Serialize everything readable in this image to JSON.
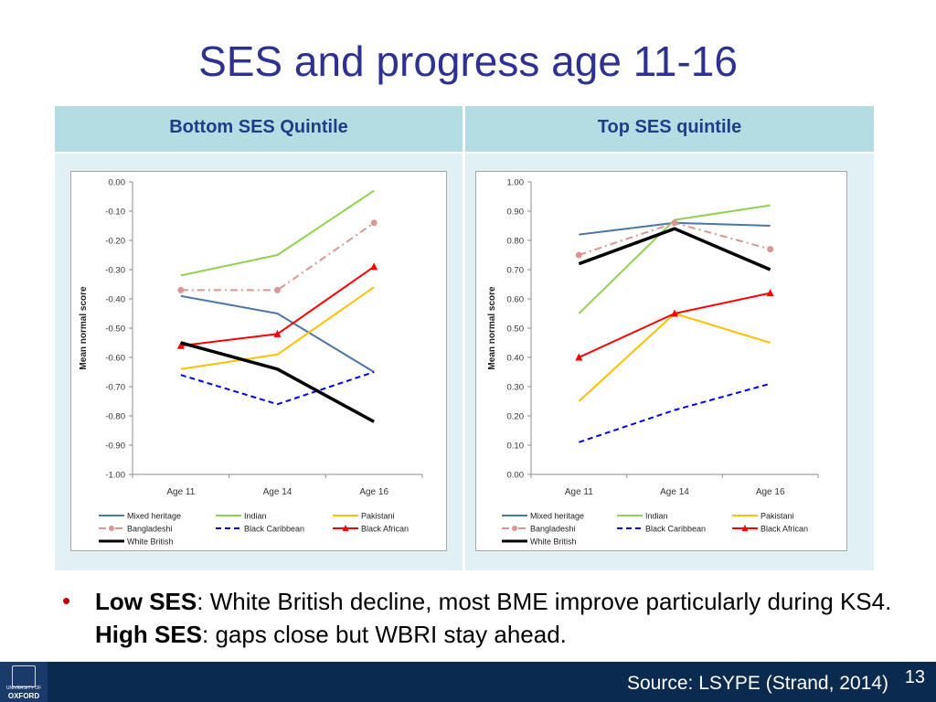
{
  "slide": {
    "title": "SES and progress age 11-16",
    "page_number": "13",
    "source": "Source:  LSYPE (Strand, 2014)",
    "logo_line1": "UNIVERSITY OF",
    "logo_line2": "OXFORD"
  },
  "table": {
    "header_left": "Bottom SES Quintile",
    "header_right": "Top SES quintile"
  },
  "bullet": {
    "b1": "Low SES",
    "t1": ": White British decline, most BME improve particularly during KS4. ",
    "b2": "High SES",
    "t2": ": gaps close but WBRI stay ahead."
  },
  "chart_data": [
    {
      "type": "line",
      "ylabel": "Mean normal score",
      "categories": [
        "Age 11",
        "Age 14",
        "Age 16"
      ],
      "ylim": [
        -1.0,
        0.0
      ],
      "yticks": [
        "0.00",
        "-0.10",
        "-0.20",
        "-0.30",
        "-0.40",
        "-0.50",
        "-0.60",
        "-0.70",
        "-0.80",
        "-0.90",
        "-1.00"
      ],
      "grid": false,
      "legend": "bottom",
      "series": [
        {
          "name": "Mixed heritage",
          "values": [
            -0.39,
            -0.45,
            -0.65
          ],
          "color": "#4a76a8",
          "dash": "",
          "marker": ""
        },
        {
          "name": "Indian",
          "values": [
            -0.32,
            -0.25,
            -0.03
          ],
          "color": "#92d050",
          "dash": "",
          "marker": ""
        },
        {
          "name": "Pakistani",
          "values": [
            -0.64,
            -0.59,
            -0.36
          ],
          "color": "#ffc000",
          "dash": "",
          "marker": ""
        },
        {
          "name": "Bangladeshi",
          "values": [
            -0.37,
            -0.37,
            -0.14
          ],
          "color": "#d99694",
          "dash": "8,4,2,4",
          "marker": "circle"
        },
        {
          "name": "Black Caribbean",
          "values": [
            -0.66,
            -0.76,
            -0.65
          ],
          "color": "#0000ff",
          "dash": "6,4",
          "marker": ""
        },
        {
          "name": "Black African",
          "values": [
            -0.56,
            -0.52,
            -0.29
          ],
          "color": "#ff0000",
          "dash": "",
          "marker": "triangle"
        },
        {
          "name": "White British",
          "values": [
            -0.55,
            -0.64,
            -0.82
          ],
          "color": "#000000",
          "dash": "",
          "marker": "",
          "width": 3.5
        }
      ]
    },
    {
      "type": "line",
      "ylabel": "Mean normal score",
      "categories": [
        "Age 11",
        "Age 14",
        "Age 16"
      ],
      "ylim": [
        0.0,
        1.0
      ],
      "yticks": [
        "1.00",
        "0.90",
        "0.80",
        "0.70",
        "0.60",
        "0.50",
        "0.40",
        "0.30",
        "0.20",
        "0.10",
        "0.00"
      ],
      "grid": false,
      "legend": "bottom",
      "series": [
        {
          "name": "Mixed heritage",
          "values": [
            0.82,
            0.86,
            0.85
          ],
          "color": "#4a76a8",
          "dash": "",
          "marker": ""
        },
        {
          "name": "Indian",
          "values": [
            0.55,
            0.87,
            0.92
          ],
          "color": "#92d050",
          "dash": "",
          "marker": ""
        },
        {
          "name": "Pakistani",
          "values": [
            0.25,
            0.55,
            0.45
          ],
          "color": "#ffc000",
          "dash": "",
          "marker": ""
        },
        {
          "name": "Bangladeshi",
          "values": [
            0.75,
            0.86,
            0.77
          ],
          "color": "#d99694",
          "dash": "8,4,2,4",
          "marker": "circle"
        },
        {
          "name": "Black Caribbean",
          "values": [
            0.11,
            0.22,
            0.31
          ],
          "color": "#0000ff",
          "dash": "6,4",
          "marker": ""
        },
        {
          "name": "Black African",
          "values": [
            0.4,
            0.55,
            0.62
          ],
          "color": "#ff0000",
          "dash": "",
          "marker": "triangle"
        },
        {
          "name": "White British",
          "values": [
            0.72,
            0.84,
            0.7
          ],
          "color": "#000000",
          "dash": "",
          "marker": "",
          "width": 3.5
        }
      ]
    }
  ]
}
